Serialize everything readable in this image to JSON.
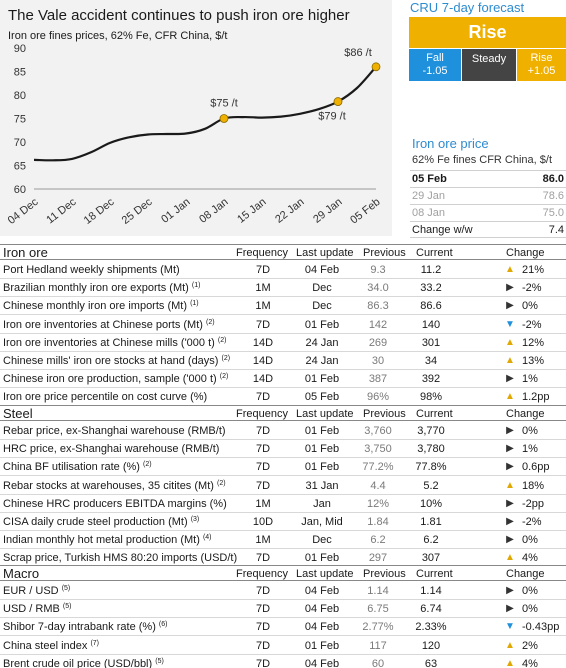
{
  "chart": {
    "title": "The Vale accident continues to push iron ore higher",
    "subtitle": "Iron ore fines prices, 62% Fe, CFR China, $/t"
  },
  "chart_data": {
    "type": "line",
    "title": "The Vale accident continues to push iron ore higher",
    "subtitle": "Iron ore fines prices, 62% Fe, CFR China, $/t",
    "xlabel": "",
    "ylabel": "",
    "x_labels": [
      "04 Dec",
      "11 Dec",
      "18 Dec",
      "25 Dec",
      "01 Jan",
      "08 Jan",
      "15 Jan",
      "22 Jan",
      "29 Jan",
      "05 Feb"
    ],
    "yticks": [
      60,
      65,
      70,
      75,
      80,
      85,
      90
    ],
    "ylim": [
      60,
      90
    ],
    "grid": false,
    "series": [
      {
        "points": [
          [
            0,
            66.2
          ],
          [
            0.5,
            66.1
          ],
          [
            1,
            66.4
          ],
          [
            1.5,
            67.8
          ],
          [
            2,
            69.8
          ],
          [
            2.5,
            71.0
          ],
          [
            3,
            71.6
          ],
          [
            3.5,
            71.7
          ],
          [
            4,
            71.8
          ],
          [
            4.5,
            72.8
          ],
          [
            5,
            75.0
          ],
          [
            5.5,
            75.3
          ],
          [
            6,
            75.2
          ],
          [
            6.5,
            75.4
          ],
          [
            7,
            76.0
          ],
          [
            7.5,
            77.0
          ],
          [
            8,
            78.6
          ],
          [
            8.5,
            81.5
          ],
          [
            9,
            86.0
          ]
        ],
        "markers": [
          {
            "x": 5,
            "y": 75.0,
            "label": "$75 /t"
          },
          {
            "x": 8,
            "y": 78.6,
            "label": "$79 /t"
          },
          {
            "x": 9,
            "y": 86.0,
            "label": "$86 /t"
          }
        ]
      }
    ],
    "colors": {
      "line": "#1a1a1a",
      "marker": "#f0b000"
    }
  },
  "forecast": {
    "title": "CRU 7-day forecast",
    "headline": "Rise",
    "fall_label": "Fall",
    "fall_value": "-1.05",
    "steady_label": "Steady",
    "rise_label": "Rise",
    "rise_value": "+1.05",
    "colors": {
      "rise": "#f0b000",
      "fall": "#1e90dc",
      "steady": "#444444"
    }
  },
  "iron_ore_price": {
    "title": "Iron ore price",
    "subtitle": "62% Fe fines CFR China, $/t",
    "rows": [
      {
        "label": "05 Feb",
        "value": "86.0"
      },
      {
        "label": "29 Jan",
        "value": "78.6"
      },
      {
        "label": "08 Jan",
        "value": "75.0"
      },
      {
        "label": "Change w/w",
        "value": "7.4"
      }
    ]
  },
  "columns": {
    "frequency": "Frequency",
    "last_update": "Last update",
    "previous": "Previous",
    "current": "Current",
    "change": "Change"
  },
  "sections": [
    {
      "name": "Iron ore",
      "rows": [
        {
          "label": "Port Hedland weekly shipments (Mt)",
          "sup": "",
          "freq": "7D",
          "update": "04 Feb",
          "prev": "9.3",
          "cur": "11.2",
          "dir": "up",
          "change": "21%"
        },
        {
          "label": "Brazilian monthly iron ore exports (Mt)",
          "sup": "(1)",
          "freq": "1M",
          "update": "Dec",
          "prev": "34.0",
          "cur": "33.2",
          "dir": "flat",
          "change": "-2%"
        },
        {
          "label": "Chinese monthly iron ore imports (Mt)",
          "sup": "(1)",
          "freq": "1M",
          "update": "Dec",
          "prev": "86.3",
          "cur": "86.6",
          "dir": "flat",
          "change": "0%"
        },
        {
          "label": "Iron ore inventories at Chinese ports (Mt)",
          "sup": "(2)",
          "freq": "7D",
          "update": "01 Feb",
          "prev": "142",
          "cur": "140",
          "dir": "down",
          "change": "-2%"
        },
        {
          "label": "Iron ore inventories at Chinese mills ('000 t)",
          "sup": "(2)",
          "freq": "14D",
          "update": "24 Jan",
          "prev": "269",
          "cur": "301",
          "dir": "up",
          "change": "12%"
        },
        {
          "label": "Chinese mills' iron ore stocks at hand (days)",
          "sup": "(2)",
          "freq": "14D",
          "update": "24 Jan",
          "prev": "30",
          "cur": "34",
          "dir": "up",
          "change": "13%"
        },
        {
          "label": "Chinese iron ore production, sample ('000 t)",
          "sup": "(2)",
          "freq": "14D",
          "update": "01 Feb",
          "prev": "387",
          "cur": "392",
          "dir": "flat",
          "change": "1%"
        },
        {
          "label": "Iron ore price percentile on cost curve (%)",
          "sup": "",
          "freq": "7D",
          "update": "05 Feb",
          "prev": "96%",
          "cur": "98%",
          "dir": "up",
          "change": "1.2pp"
        }
      ]
    },
    {
      "name": "Steel",
      "rows": [
        {
          "label": "Rebar price, ex-Shanghai warehouse (RMB/t)",
          "sup": "",
          "freq": "7D",
          "update": "01 Feb",
          "prev": "3,760",
          "cur": "3,770",
          "dir": "flat",
          "change": "0%"
        },
        {
          "label": "HRC price, ex-Shanghai warehouse (RMB/t)",
          "sup": "",
          "freq": "7D",
          "update": "01 Feb",
          "prev": "3,750",
          "cur": "3,780",
          "dir": "flat",
          "change": "1%"
        },
        {
          "label": "China BF utilisation rate (%)",
          "sup": "(2)",
          "freq": "7D",
          "update": "01 Feb",
          "prev": "77.2%",
          "cur": "77.8%",
          "dir": "flat",
          "change": "0.6pp"
        },
        {
          "label": "Rebar stocks at warehouses, 35 citites (Mt)",
          "sup": "(2)",
          "freq": "7D",
          "update": "31 Jan",
          "prev": "4.4",
          "cur": "5.2",
          "dir": "up",
          "change": "18%"
        },
        {
          "label": "Chinese HRC producers EBITDA margins (%)",
          "sup": "",
          "freq": "1M",
          "update": "Jan",
          "prev": "12%",
          "cur": "10%",
          "dir": "flat",
          "change": "-2pp"
        },
        {
          "label": "CISA daily crude steel production (Mt)",
          "sup": "(3)",
          "freq": "10D",
          "update": "Jan, Mid",
          "prev": "1.84",
          "cur": "1.81",
          "dir": "flat",
          "change": "-2%"
        },
        {
          "label": "Indian monthly hot metal production (Mt)",
          "sup": "(4)",
          "freq": "1M",
          "update": "Dec",
          "prev": "6.2",
          "cur": "6.2",
          "dir": "flat",
          "change": "0%"
        },
        {
          "label": "Scrap price, Turkish HMS 80:20 imports (USD/t)",
          "sup": "",
          "freq": "7D",
          "update": "01 Feb",
          "prev": "297",
          "cur": "307",
          "dir": "up",
          "change": "4%"
        }
      ]
    },
    {
      "name": "Macro",
      "rows": [
        {
          "label": "EUR / USD",
          "sup": "(5)",
          "freq": "7D",
          "update": "04 Feb",
          "prev": "1.14",
          "cur": "1.14",
          "dir": "flat",
          "change": "0%"
        },
        {
          "label": "USD / RMB",
          "sup": "(5)",
          "freq": "7D",
          "update": "04 Feb",
          "prev": "6.75",
          "cur": "6.74",
          "dir": "flat",
          "change": "0%"
        },
        {
          "label": "Shibor 7-day intrabank rate (%)",
          "sup": "(6)",
          "freq": "7D",
          "update": "04 Feb",
          "prev": "2.77%",
          "cur": "2.33%",
          "dir": "down",
          "change": "-0.43pp"
        },
        {
          "label": "China steel index",
          "sup": "(7)",
          "freq": "7D",
          "update": "01 Feb",
          "prev": "117",
          "cur": "120",
          "dir": "up",
          "change": "2%"
        },
        {
          "label": "Brent crude oil price (USD/bbl)",
          "sup": "(5)",
          "freq": "7D",
          "update": "04 Feb",
          "prev": "60",
          "cur": "63",
          "dir": "up",
          "change": "4%"
        }
      ]
    }
  ]
}
